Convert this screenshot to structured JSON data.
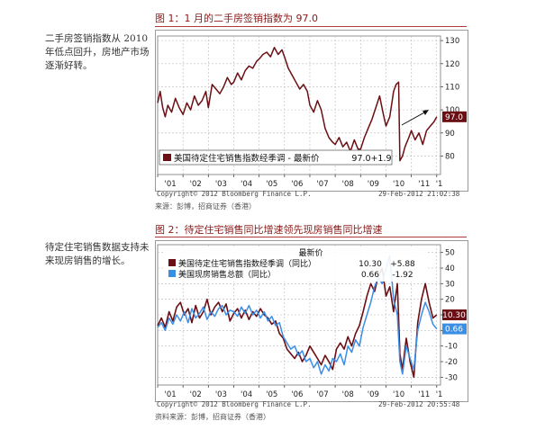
{
  "page": {
    "colors": {
      "accent": "#8b1a1a",
      "series_dark_red": "#6b0f14",
      "series_blue": "#3a8ee6"
    }
  },
  "figure1": {
    "title": "图 1：1 月的二手房签销指数为 97.0",
    "side_note": [
      "二手房签销指数从 2010",
      "年低点回升，房地产市场",
      "逐渐好转。"
    ],
    "legend_text": "美国待定住宅销售指数经季调 - 最新价",
    "legend_last": "97.0",
    "legend_change": "+1.9",
    "last_value_label": "97.0",
    "copyright": "Copyright© 2012 Bloomberg Finance L.P.",
    "timestamp": "29-Feb-2012 21:02:38",
    "source": "来源：彭博，招商证券（香港）",
    "chart_data": {
      "type": "line",
      "x_labels": [
        "'01",
        "'02",
        "'03",
        "'04",
        "'05",
        "'06",
        "'07",
        "'08",
        "'09",
        "'10",
        "'11",
        "'1"
      ],
      "ylim": [
        72,
        132
      ],
      "yticks": [
        80,
        90,
        100,
        110,
        120,
        130
      ],
      "grid": true,
      "series": [
        {
          "name": "美国待定住宅销售指数经季调",
          "color": "#6b0f14",
          "x": [
            2001.0,
            2001.1,
            2001.2,
            2001.3,
            2001.4,
            2001.55,
            2001.7,
            2001.85,
            2002.0,
            2002.15,
            2002.3,
            2002.45,
            2002.6,
            2002.75,
            2002.9,
            2003.0,
            2003.15,
            2003.3,
            2003.45,
            2003.6,
            2003.75,
            2003.9,
            2004.0,
            2004.15,
            2004.3,
            2004.45,
            2004.6,
            2004.75,
            2004.9,
            2005.0,
            2005.15,
            2005.3,
            2005.45,
            2005.6,
            2005.75,
            2005.9,
            2006.0,
            2006.15,
            2006.3,
            2006.45,
            2006.6,
            2006.75,
            2006.9,
            2007.0,
            2007.15,
            2007.3,
            2007.45,
            2007.6,
            2007.75,
            2007.9,
            2008.0,
            2008.15,
            2008.3,
            2008.45,
            2008.6,
            2008.75,
            2008.9,
            2009.0,
            2009.15,
            2009.3,
            2009.45,
            2009.6,
            2009.75,
            2009.9,
            2010.0,
            2010.15,
            2010.3,
            2010.4,
            2010.5,
            2010.55,
            2010.65,
            2010.75,
            2010.9,
            2011.0,
            2011.15,
            2011.3,
            2011.45,
            2011.6,
            2011.75,
            2011.9,
            2012.0
          ],
          "y": [
            103,
            108,
            101,
            97,
            102,
            99,
            105,
            101,
            98,
            103,
            100,
            106,
            102,
            104,
            108,
            101,
            111,
            109,
            107,
            110,
            114,
            111,
            112,
            116,
            113,
            117,
            119,
            118,
            121,
            122,
            124,
            125,
            123,
            127,
            124,
            126,
            123,
            118,
            115,
            112,
            109,
            111,
            108,
            102,
            99,
            104,
            100,
            92,
            88,
            86,
            85,
            88,
            84,
            86,
            82,
            87,
            83,
            83,
            88,
            92,
            96,
            101,
            106,
            98,
            93,
            97,
            108,
            111,
            112,
            78,
            80,
            84,
            88,
            91,
            87,
            90,
            85,
            91,
            93,
            95,
            97
          ]
        }
      ]
    }
  },
  "figure2": {
    "title": "图 2：待定住宅销售同比增速领先现房销售同比增速",
    "side_note": [
      "待定住宅销售数据支持未",
      "来现房销售的增长。"
    ],
    "legend_header": "最新价",
    "legend_items": [
      {
        "label": "美国待定住宅销售指数经季调（同比）",
        "last": "10.30",
        "change": "+5.88",
        "color": "#6b0f14"
      },
      {
        "label": "美国现房销售总额（同比）",
        "last": "0.66",
        "change": "-1.92",
        "color": "#3a8ee6"
      }
    ],
    "last_labels": [
      "10.30",
      "0.66"
    ],
    "copyright": "Copyright© 2012 Bloomberg Finance L.P.",
    "timestamp": "29-Feb-2012 20:55:48",
    "source": "资料来源：彭博，招商证券（香港）",
    "chart_data": {
      "type": "line",
      "x_labels": [
        "'01",
        "'02",
        "'03",
        "'04",
        "'05",
        "'06",
        "'07",
        "'08",
        "'09",
        "'10",
        "'11",
        "'1"
      ],
      "ylim": [
        -35,
        55
      ],
      "yticks": [
        -30,
        -20,
        -10,
        0,
        10,
        20,
        30,
        40,
        50
      ],
      "grid": true,
      "series": [
        {
          "name": "美国待定住宅销售指数经季调（同比）",
          "color": "#6b0f14",
          "x": [
            2001.0,
            2001.15,
            2001.3,
            2001.45,
            2001.6,
            2001.75,
            2001.9,
            2002.05,
            2002.2,
            2002.35,
            2002.5,
            2002.65,
            2002.8,
            2002.95,
            2003.1,
            2003.25,
            2003.4,
            2003.55,
            2003.7,
            2003.85,
            2004.0,
            2004.15,
            2004.3,
            2004.45,
            2004.6,
            2004.75,
            2004.9,
            2005.05,
            2005.2,
            2005.35,
            2005.5,
            2005.65,
            2005.8,
            2005.95,
            2006.1,
            2006.25,
            2006.4,
            2006.55,
            2006.7,
            2006.85,
            2007.0,
            2007.15,
            2007.3,
            2007.45,
            2007.6,
            2007.75,
            2007.9,
            2008.05,
            2008.2,
            2008.35,
            2008.5,
            2008.65,
            2008.8,
            2008.95,
            2009.1,
            2009.25,
            2009.4,
            2009.55,
            2009.7,
            2009.85,
            2010.0,
            2010.15,
            2010.3,
            2010.45,
            2010.55,
            2010.65,
            2010.8,
            2010.95,
            2011.1,
            2011.25,
            2011.4,
            2011.55,
            2011.7,
            2011.85,
            2012.0
          ],
          "y": [
            3,
            8,
            2,
            12,
            6,
            15,
            18,
            10,
            14,
            5,
            16,
            8,
            12,
            20,
            10,
            15,
            18,
            12,
            17,
            6,
            11,
            14,
            8,
            13,
            7,
            12,
            9,
            14,
            10,
            8,
            4,
            6,
            -2,
            -5,
            -12,
            -15,
            -18,
            -14,
            -20,
            -16,
            -10,
            -14,
            -18,
            -22,
            -16,
            -20,
            -25,
            -12,
            -8,
            -12,
            -4,
            -10,
            -2,
            3,
            12,
            22,
            30,
            25,
            35,
            40,
            22,
            28,
            12,
            30,
            -15,
            -25,
            -5,
            -20,
            -30,
            5,
            20,
            30,
            18,
            8,
            10
          ]
        },
        {
          "name": "美国现房销售总额（同比）",
          "color": "#3a8ee6",
          "x": [
            2001.0,
            2001.15,
            2001.3,
            2001.45,
            2001.6,
            2001.75,
            2001.9,
            2002.05,
            2002.2,
            2002.35,
            2002.5,
            2002.65,
            2002.8,
            2002.95,
            2003.1,
            2003.25,
            2003.4,
            2003.55,
            2003.7,
            2003.85,
            2004.0,
            2004.15,
            2004.3,
            2004.45,
            2004.6,
            2004.75,
            2004.9,
            2005.05,
            2005.2,
            2005.35,
            2005.5,
            2005.65,
            2005.8,
            2005.95,
            2006.1,
            2006.25,
            2006.4,
            2006.55,
            2006.7,
            2006.85,
            2007.0,
            2007.15,
            2007.3,
            2007.45,
            2007.6,
            2007.75,
            2007.9,
            2008.05,
            2008.2,
            2008.35,
            2008.5,
            2008.65,
            2008.8,
            2008.95,
            2009.1,
            2009.25,
            2009.4,
            2009.55,
            2009.7,
            2009.85,
            2010.0,
            2010.15,
            2010.3,
            2010.45,
            2010.55,
            2010.65,
            2010.8,
            2010.95,
            2011.1,
            2011.25,
            2011.4,
            2011.55,
            2011.7,
            2011.85,
            2012.0
          ],
          "y": [
            2,
            5,
            0,
            8,
            4,
            10,
            6,
            12,
            5,
            14,
            8,
            11,
            15,
            7,
            12,
            9,
            14,
            16,
            10,
            13,
            12,
            9,
            15,
            11,
            16,
            10,
            13,
            8,
            12,
            6,
            9,
            3,
            5,
            -4,
            -8,
            -12,
            -10,
            -16,
            -13,
            -20,
            -18,
            -24,
            -20,
            -28,
            -22,
            -26,
            -18,
            -20,
            -15,
            -22,
            -10,
            -14,
            -6,
            -10,
            2,
            10,
            18,
            28,
            34,
            30,
            40,
            48,
            20,
            10,
            -20,
            -28,
            -10,
            -18,
            -25,
            0,
            10,
            18,
            12,
            4,
            1
          ]
        }
      ]
    }
  }
}
